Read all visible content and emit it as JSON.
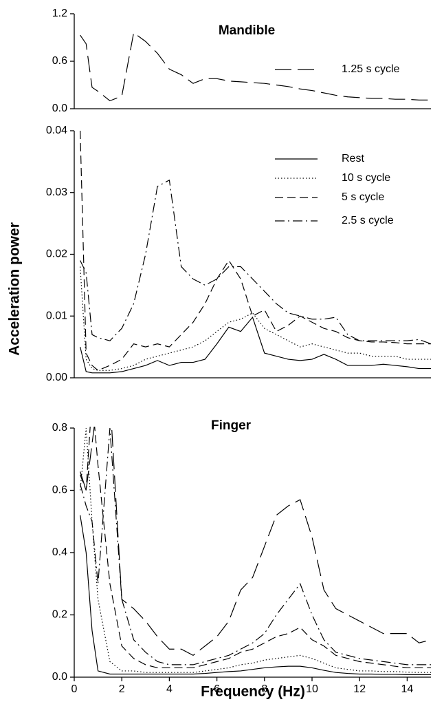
{
  "chart_data": [
    {
      "type": "line",
      "title": "Mandible",
      "x": [
        0.25,
        0.5,
        0.75,
        1,
        1.5,
        2,
        2.5,
        3,
        3.5,
        4,
        4.5,
        5,
        5.5,
        6,
        6.5,
        7,
        7.5,
        8,
        8.5,
        9,
        9.5,
        10,
        10.5,
        11,
        11.5,
        12,
        12.5,
        13,
        13.5,
        14,
        14.5,
        15
      ],
      "xlim": [
        0,
        15
      ],
      "ylim": [
        0,
        1.2
      ],
      "yticks": [
        {
          "value": 0,
          "label": "0.0"
        },
        0.6,
        1.2
      ],
      "series": [
        {
          "name": "1.25 s cycle",
          "color": "#000000",
          "dash": "longdash",
          "values": [
            0.93,
            0.82,
            0.27,
            0.22,
            0.1,
            0.16,
            0.96,
            0.85,
            0.7,
            0.5,
            0.43,
            0.32,
            0.38,
            0.38,
            0.35,
            0.34,
            0.33,
            0.32,
            0.3,
            0.28,
            0.25,
            0.23,
            0.2,
            0.17,
            0.15,
            0.14,
            0.13,
            0.13,
            0.12,
            0.12,
            0.11,
            0.11
          ]
        }
      ]
    },
    {
      "type": "line",
      "ylabel": "Acceleration power",
      "x": [
        0.25,
        0.5,
        0.75,
        1,
        1.5,
        2,
        2.5,
        3,
        3.5,
        4,
        4.5,
        5,
        5.5,
        6,
        6.5,
        7,
        7.5,
        8,
        8.5,
        9,
        9.5,
        10,
        10.5,
        11,
        11.5,
        12,
        12.5,
        13,
        13.5,
        14,
        14.5,
        15
      ],
      "xlim": [
        0,
        15
      ],
      "ylim": [
        0,
        0.04
      ],
      "yticks": [
        {
          "value": 0,
          "label": "0.00"
        },
        0.01,
        0.02,
        0.03,
        0.04
      ],
      "series": [
        {
          "name": "Rest",
          "color": "#000000",
          "dash": "solid",
          "values": [
            0.005,
            0.001,
            0.0008,
            0.0008,
            0.0008,
            0.001,
            0.0015,
            0.002,
            0.0028,
            0.002,
            0.0025,
            0.0025,
            0.003,
            0.0055,
            0.0082,
            0.0075,
            0.0098,
            0.004,
            0.0035,
            0.003,
            0.0028,
            0.003,
            0.0038,
            0.003,
            0.002,
            0.002,
            0.002,
            0.0022,
            0.002,
            0.0018,
            0.0015,
            0.0015
          ]
        },
        {
          "name": "10 s cycle",
          "color": "#000000",
          "dash": "dotted",
          "values": [
            0.018,
            0.003,
            0.0015,
            0.0012,
            0.0012,
            0.0015,
            0.002,
            0.003,
            0.0035,
            0.004,
            0.0045,
            0.005,
            0.006,
            0.0075,
            0.009,
            0.0095,
            0.0105,
            0.008,
            0.007,
            0.006,
            0.005,
            0.0055,
            0.005,
            0.0045,
            0.004,
            0.004,
            0.0035,
            0.0035,
            0.0035,
            0.003,
            0.003,
            0.003
          ]
        },
        {
          "name": "5 s cycle",
          "color": "#000000",
          "dash": "dashed",
          "values": [
            0.04,
            0.004,
            0.002,
            0.0012,
            0.002,
            0.003,
            0.0055,
            0.005,
            0.0055,
            0.005,
            0.007,
            0.009,
            0.012,
            0.016,
            0.019,
            0.016,
            0.01,
            0.011,
            0.0075,
            0.0085,
            0.01,
            0.009,
            0.008,
            0.0075,
            0.0065,
            0.006,
            0.0058,
            0.0058,
            0.0057,
            0.0055,
            0.0055,
            0.0055
          ]
        },
        {
          "name": "2.5 s cycle",
          "color": "#000000",
          "dash": "dashdot",
          "values": [
            0.019,
            0.017,
            0.007,
            0.0065,
            0.006,
            0.008,
            0.012,
            0.02,
            0.031,
            0.032,
            0.018,
            0.016,
            0.015,
            0.016,
            0.018,
            0.018,
            0.016,
            0.014,
            0.012,
            0.0105,
            0.01,
            0.0095,
            0.0095,
            0.0098,
            0.007,
            0.006,
            0.006,
            0.006,
            0.006,
            0.006,
            0.0062,
            0.0055
          ]
        }
      ]
    },
    {
      "type": "line",
      "title": "Finger",
      "xlabel": "Frequency (Hz)",
      "x": [
        0.25,
        0.5,
        0.75,
        1,
        1.5,
        2,
        2.5,
        3,
        3.5,
        4,
        4.5,
        5,
        5.5,
        6,
        6.5,
        7,
        7.5,
        8,
        8.5,
        9,
        9.5,
        10,
        10.5,
        11,
        11.5,
        12,
        12.5,
        13,
        13.5,
        14,
        14.5,
        15
      ],
      "xlim": [
        0,
        15
      ],
      "xticks": [
        0,
        2,
        4,
        6,
        8,
        10,
        12,
        14
      ],
      "ylim": [
        0,
        0.8
      ],
      "yticks": [
        {
          "value": 0,
          "label": "0.0"
        },
        0.2,
        0.4,
        0.6,
        0.8
      ],
      "series": [
        {
          "color": "#000000",
          "dash": "solid",
          "values": [
            0.52,
            0.4,
            0.15,
            0.02,
            0.01,
            0.01,
            0.01,
            0.01,
            0.01,
            0.01,
            0.01,
            0.01,
            0.012,
            0.015,
            0.018,
            0.02,
            0.025,
            0.03,
            0.033,
            0.035,
            0.035,
            0.03,
            0.022,
            0.015,
            0.012,
            0.01,
            0.01,
            0.009,
            0.009,
            0.008,
            0.008,
            0.008
          ]
        },
        {
          "color": "#000000",
          "dash": "dotted",
          "values": [
            0.6,
            0.8,
            0.5,
            0.25,
            0.05,
            0.02,
            0.02,
            0.015,
            0.015,
            0.015,
            0.015,
            0.015,
            0.02,
            0.025,
            0.03,
            0.04,
            0.045,
            0.055,
            0.06,
            0.065,
            0.07,
            0.06,
            0.045,
            0.03,
            0.025,
            0.02,
            0.02,
            0.018,
            0.018,
            0.016,
            0.015,
            0.015
          ]
        },
        {
          "color": "#000000",
          "dash": "dashed",
          "values": [
            0.65,
            0.6,
            0.9,
            0.68,
            0.3,
            0.1,
            0.06,
            0.04,
            0.03,
            0.03,
            0.03,
            0.03,
            0.04,
            0.05,
            0.06,
            0.08,
            0.09,
            0.11,
            0.13,
            0.14,
            0.16,
            0.12,
            0.1,
            0.07,
            0.06,
            0.05,
            0.045,
            0.04,
            0.035,
            0.03,
            0.03,
            0.03
          ]
        },
        {
          "color": "#000000",
          "dash": "dashdot",
          "values": [
            0.62,
            0.55,
            0.5,
            0.3,
            0.8,
            0.25,
            0.12,
            0.08,
            0.05,
            0.04,
            0.04,
            0.04,
            0.05,
            0.06,
            0.07,
            0.09,
            0.11,
            0.14,
            0.2,
            0.25,
            0.3,
            0.2,
            0.12,
            0.08,
            0.07,
            0.06,
            0.055,
            0.05,
            0.045,
            0.04,
            0.04,
            0.04
          ]
        },
        {
          "color": "#000000",
          "dash": "longdash",
          "values": [
            0.66,
            0.6,
            0.75,
            0.9,
            0.9,
            0.25,
            0.22,
            0.18,
            0.13,
            0.09,
            0.09,
            0.07,
            0.1,
            0.13,
            0.18,
            0.28,
            0.32,
            0.42,
            0.52,
            0.55,
            0.57,
            0.45,
            0.28,
            0.22,
            0.2,
            0.18,
            0.16,
            0.14,
            0.14,
            0.14,
            0.11,
            0.12
          ]
        }
      ]
    }
  ]
}
